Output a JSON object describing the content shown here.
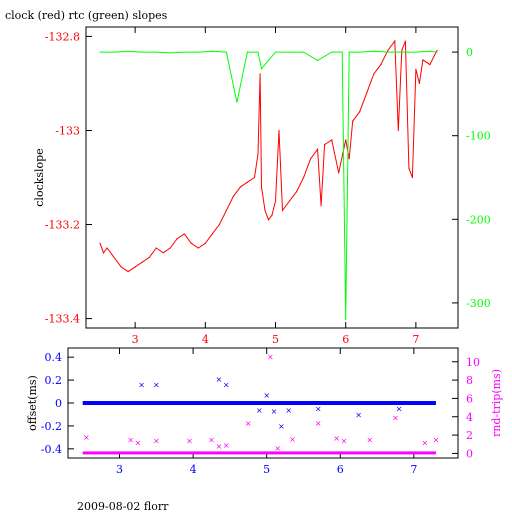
{
  "title": "clock (red) rtc (green) slopes",
  "footer": "2009-08-02 florr",
  "colors": {
    "red": "#ff0000",
    "green": "#00ff00",
    "blue": "#0000ff",
    "magenta": "#ff00ff",
    "axis": "#000000"
  },
  "chart_data": [
    {
      "type": "line",
      "title": "clock (red) rtc (green) slopes",
      "xlabel": "",
      "ylabel": "clockslope",
      "xlim": [
        2.3,
        7.6
      ],
      "ylim": [
        -133.42,
        -132.78
      ],
      "y2lim": [
        -330,
        30
      ],
      "x_ticks": [
        "3",
        "4",
        "5",
        "6",
        "7"
      ],
      "y_ticks": [
        "-132.8",
        "-133",
        "-133.2",
        "-133.4"
      ],
      "y2_ticks": [
        "0",
        "-100",
        "-200",
        "-300"
      ],
      "series": [
        {
          "axis": "left",
          "color": "#ff0000",
          "x": [
            2.5,
            2.55,
            2.6,
            2.7,
            2.8,
            2.9,
            3.0,
            3.1,
            3.2,
            3.3,
            3.4,
            3.5,
            3.6,
            3.7,
            3.8,
            3.9,
            4.0,
            4.1,
            4.2,
            4.3,
            4.4,
            4.5,
            4.6,
            4.7,
            4.75,
            4.78,
            4.8,
            4.85,
            4.9,
            4.95,
            5.0,
            5.05,
            5.1,
            5.2,
            5.3,
            5.4,
            5.5,
            5.6,
            5.65,
            5.7,
            5.8,
            5.9,
            6.0,
            6.05,
            6.1,
            6.2,
            6.3,
            6.4,
            6.5,
            6.6,
            6.7,
            6.75,
            6.8,
            6.85,
            6.9,
            6.95,
            7.0,
            7.05,
            7.1,
            7.2,
            7.3
          ],
          "values": [
            -133.24,
            -133.26,
            -133.25,
            -133.27,
            -133.29,
            -133.3,
            -133.29,
            -133.28,
            -133.27,
            -133.25,
            -133.26,
            -133.25,
            -133.23,
            -133.22,
            -133.24,
            -133.25,
            -133.24,
            -133.22,
            -133.2,
            -133.17,
            -133.14,
            -133.12,
            -133.11,
            -133.1,
            -133.05,
            -132.88,
            -133.12,
            -133.17,
            -133.19,
            -133.18,
            -133.15,
            -133.0,
            -133.17,
            -133.15,
            -133.13,
            -133.1,
            -133.06,
            -133.04,
            -133.16,
            -133.03,
            -133.02,
            -133.09,
            -133.02,
            -133.06,
            -132.98,
            -132.96,
            -132.92,
            -132.88,
            -132.86,
            -132.83,
            -132.81,
            -133.0,
            -132.83,
            -132.81,
            -133.08,
            -133.1,
            -132.87,
            -132.9,
            -132.85,
            -132.86,
            -132.83
          ]
        },
        {
          "axis": "right",
          "color": "#00ff00",
          "x": [
            2.5,
            2.7,
            2.9,
            3.1,
            3.3,
            3.5,
            3.7,
            3.9,
            4.1,
            4.3,
            4.45,
            4.6,
            4.75,
            4.8,
            5.0,
            5.2,
            5.4,
            5.6,
            5.8,
            5.95,
            6.0,
            6.05,
            6.2,
            6.4,
            6.6,
            6.8,
            7.0,
            7.2,
            7.3
          ],
          "values": [
            0,
            0,
            1,
            0,
            0,
            -1,
            0,
            0,
            1,
            0,
            -60,
            0,
            0,
            -20,
            0,
            0,
            0,
            -10,
            0,
            0,
            -320,
            0,
            0,
            1,
            0,
            0,
            0,
            1,
            0
          ]
        }
      ]
    },
    {
      "type": "scatter",
      "xlabel": "",
      "ylabel": "offset(ms)",
      "y2label": "rnd-trip(ms)",
      "xlim": [
        2.3,
        7.6
      ],
      "ylim": [
        -0.48,
        0.48
      ],
      "y2lim": [
        -0.5,
        11.5
      ],
      "x_ticks": [
        "3",
        "4",
        "5",
        "6",
        "7"
      ],
      "y_ticks": [
        "0.4",
        "0.2",
        "0",
        "-0.2",
        "-0.4"
      ],
      "y2_ticks": [
        "10",
        "8",
        "6",
        "4",
        "2",
        "0"
      ],
      "series": [
        {
          "axis": "left",
          "color": "#0000ff",
          "x": [
            3.3,
            3.5,
            4.35,
            4.45,
            4.9,
            5.0,
            5.1,
            5.2,
            5.3,
            5.7,
            6.25,
            6.8
          ],
          "values": [
            0.16,
            0.16,
            0.21,
            0.16,
            -0.06,
            0.07,
            -0.07,
            -0.2,
            -0.06,
            -0.05,
            -0.1,
            -0.05
          ]
        },
        {
          "axis": "right",
          "color": "#ff00ff",
          "x": [
            2.55,
            3.15,
            3.25,
            3.5,
            3.95,
            4.25,
            4.35,
            4.45,
            4.75,
            5.05,
            5.15,
            5.35,
            5.7,
            5.95,
            6.05,
            6.4,
            6.75,
            7.15,
            7.3
          ],
          "values": [
            1.8,
            1.5,
            1.2,
            1.4,
            1.4,
            1.5,
            0.8,
            0.9,
            3.3,
            10.6,
            0.6,
            1.6,
            3.3,
            1.7,
            1.4,
            1.5,
            3.9,
            1.2,
            1.5
          ]
        }
      ]
    }
  ]
}
